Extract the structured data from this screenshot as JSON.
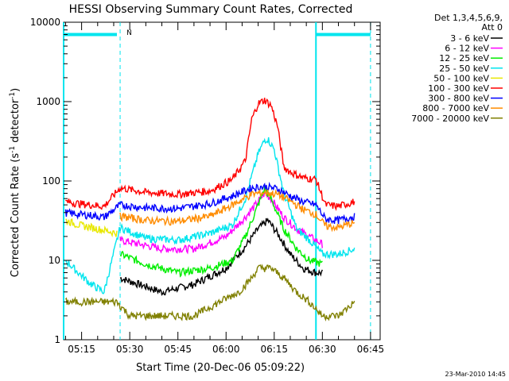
{
  "chart_data": {
    "type": "line",
    "title": "HESSI Observing Summary Count Rates, Corrected",
    "xlabel": "Start Time (20-Dec-06 05:09:22)",
    "ylabel": "Corrected Count Rate (s⁻¹ detector⁻¹)",
    "ylabel_parts": {
      "main": "Corrected Count Rate (s",
      "sup1": "-1",
      "mid": " detector",
      "sup2": "-1",
      "end": ")"
    },
    "x_range_minutes": [
      9.4,
      100
    ],
    "ylim": [
      1,
      10000
    ],
    "yscale": "log",
    "x_ticks": [
      {
        "m": 15,
        "label": "05:15"
      },
      {
        "m": 30,
        "label": "05:30"
      },
      {
        "m": 45,
        "label": "05:45"
      },
      {
        "m": 60,
        "label": "06:00"
      },
      {
        "m": 75,
        "label": "06:15"
      },
      {
        "m": 90,
        "label": "06:30"
      },
      {
        "m": 105,
        "label": "06:45"
      }
    ],
    "y_ticks": [
      {
        "v": 1,
        "label": "1"
      },
      {
        "v": 10,
        "label": "10"
      },
      {
        "v": 100,
        "label": "100"
      },
      {
        "v": 1000,
        "label": "1000"
      },
      {
        "v": 10000,
        "label": "10000"
      }
    ],
    "legend_header": [
      "Det 1,3,4,5,6,9,",
      "Att 0"
    ],
    "legend_position": "top-right outside",
    "annotation_n": "N",
    "timestamp": "23-Mar-2010 14:45",
    "night_markers_minutes": [
      27,
      88,
      105
    ],
    "night_bar_color": "#00e5ee",
    "series": [
      {
        "name": "3 - 6 keV",
        "color": "#000000",
        "points": [
          [
            27,
            6
          ],
          [
            40,
            4
          ],
          [
            50,
            5
          ],
          [
            60,
            8
          ],
          [
            66,
            15
          ],
          [
            70,
            25
          ],
          [
            73,
            32
          ],
          [
            76,
            22
          ],
          [
            80,
            12
          ],
          [
            84,
            8
          ],
          [
            88,
            7
          ],
          [
            90,
            7
          ]
        ]
      },
      {
        "name": "6 - 12 keV",
        "color": "#ff00ff",
        "points": [
          [
            27,
            18
          ],
          [
            40,
            14
          ],
          [
            50,
            14
          ],
          [
            60,
            20
          ],
          [
            66,
            35
          ],
          [
            70,
            55
          ],
          [
            72,
            70
          ],
          [
            74,
            60
          ],
          [
            78,
            35
          ],
          [
            82,
            25
          ],
          [
            86,
            20
          ],
          [
            90,
            16
          ]
        ]
      },
      {
        "name": "12 - 25 keV",
        "color": "#00ee00",
        "points": [
          [
            27,
            12
          ],
          [
            35,
            9
          ],
          [
            45,
            7
          ],
          [
            55,
            8
          ],
          [
            62,
            10
          ],
          [
            66,
            20
          ],
          [
            70,
            50
          ],
          [
            72,
            80
          ],
          [
            74,
            60
          ],
          [
            78,
            25
          ],
          [
            82,
            14
          ],
          [
            86,
            10
          ],
          [
            90,
            9
          ]
        ]
      },
      {
        "name": "25 - 50 keV",
        "color": "#00e5ee",
        "points": [
          [
            10,
            10
          ],
          [
            14,
            7
          ],
          [
            18,
            5
          ],
          [
            22,
            4
          ],
          [
            27,
            26
          ],
          [
            35,
            19
          ],
          [
            45,
            18
          ],
          [
            55,
            22
          ],
          [
            62,
            28
          ],
          [
            66,
            60
          ],
          [
            70,
            220
          ],
          [
            72,
            330
          ],
          [
            73,
            340
          ],
          [
            75,
            250
          ],
          [
            78,
            70
          ],
          [
            82,
            25
          ],
          [
            86,
            18
          ],
          [
            90,
            12
          ],
          [
            95,
            12
          ],
          [
            100,
            14
          ]
        ]
      },
      {
        "name": "50 - 100 keV",
        "color": "#e8e800",
        "points": [
          [
            10,
            32
          ],
          [
            14,
            28
          ],
          [
            18,
            26
          ],
          [
            22,
            24
          ],
          [
            26,
            22
          ]
        ]
      },
      {
        "name": "100 - 300 keV",
        "color": "#ff0000",
        "points": [
          [
            10,
            55
          ],
          [
            14,
            52
          ],
          [
            18,
            50
          ],
          [
            22,
            48
          ],
          [
            27,
            82
          ],
          [
            35,
            72
          ],
          [
            45,
            68
          ],
          [
            55,
            75
          ],
          [
            62,
            105
          ],
          [
            66,
            180
          ],
          [
            68,
            600
          ],
          [
            70,
            950
          ],
          [
            72,
            1050
          ],
          [
            74,
            900
          ],
          [
            76,
            500
          ],
          [
            78,
            150
          ],
          [
            80,
            130
          ],
          [
            84,
            110
          ],
          [
            88,
            105
          ],
          [
            91,
            50
          ],
          [
            95,
            48
          ],
          [
            100,
            55
          ]
        ]
      },
      {
        "name": "300 - 800 keV",
        "color": "#0000ff",
        "points": [
          [
            10,
            40
          ],
          [
            14,
            38
          ],
          [
            18,
            37
          ],
          [
            22,
            35
          ],
          [
            27,
            50
          ],
          [
            35,
            46
          ],
          [
            45,
            45
          ],
          [
            55,
            52
          ],
          [
            62,
            65
          ],
          [
            68,
            82
          ],
          [
            72,
            85
          ],
          [
            76,
            80
          ],
          [
            80,
            65
          ],
          [
            84,
            55
          ],
          [
            88,
            50
          ],
          [
            91,
            33
          ],
          [
            95,
            32
          ],
          [
            100,
            36
          ]
        ]
      },
      {
        "name": "800 - 7000 keV",
        "color": "#ff8c00",
        "points": [
          [
            27,
            36
          ],
          [
            35,
            32
          ],
          [
            45,
            31
          ],
          [
            55,
            36
          ],
          [
            62,
            50
          ],
          [
            68,
            68
          ],
          [
            72,
            72
          ],
          [
            76,
            68
          ],
          [
            80,
            56
          ],
          [
            84,
            44
          ],
          [
            88,
            38
          ],
          [
            91,
            27
          ],
          [
            95,
            26
          ],
          [
            100,
            30
          ]
        ]
      },
      {
        "name": "7000 - 20000 keV",
        "color": "#808000",
        "points": [
          [
            10,
            3
          ],
          [
            18,
            3
          ],
          [
            26,
            3
          ],
          [
            30,
            2
          ],
          [
            40,
            2
          ],
          [
            50,
            2
          ],
          [
            58,
            3
          ],
          [
            64,
            4
          ],
          [
            68,
            6
          ],
          [
            70,
            8
          ],
          [
            74,
            8
          ],
          [
            78,
            6
          ],
          [
            82,
            4
          ],
          [
            86,
            3
          ],
          [
            90,
            2
          ],
          [
            95,
            2
          ],
          [
            100,
            3
          ]
        ]
      }
    ]
  }
}
